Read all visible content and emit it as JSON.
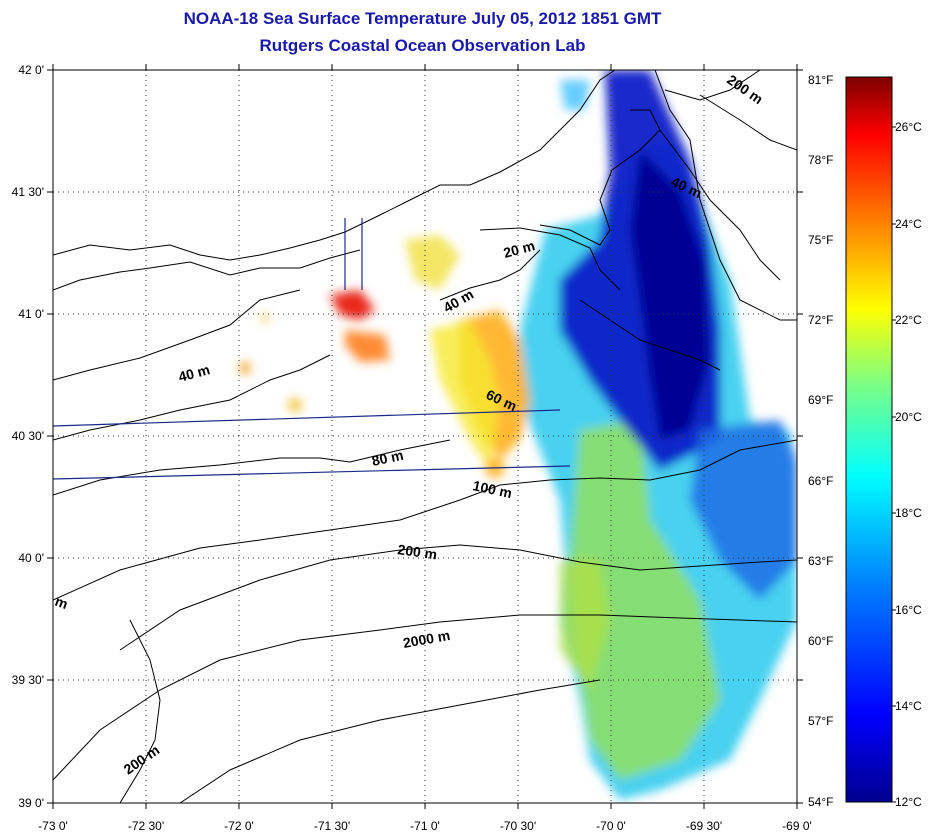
{
  "header": {
    "title": "NOAA-18 Sea Surface Temperature July 05, 2012 1851 GMT",
    "subtitle": "Rutgers Coastal Ocean Observation Lab"
  },
  "map": {
    "lon_range": [
      -73.0,
      -69.0
    ],
    "lat_range": [
      39.0,
      42.0
    ],
    "lon_ticks": [
      "-73 0'",
      "-72 30'",
      "-72 0'",
      "-71 30'",
      "-71 0'",
      "-70 30'",
      "-70 0'",
      "-69 30'",
      "-69 0'"
    ],
    "lat_ticks": [
      "42 0'",
      "41 30'",
      "41 0'",
      "40 30'",
      "40 0'",
      "39 30'",
      "39 0'"
    ],
    "contour_labels": [
      "200 m",
      "40 m",
      "20 m",
      "40 m",
      "40 m",
      "60 m",
      "80 m",
      "100 m",
      "200 m",
      "2000 m",
      "200 m",
      "m"
    ]
  },
  "colorbar": {
    "fahrenheit_labels": [
      "81°F",
      "78°F",
      "75°F",
      "72°F",
      "69°F",
      "66°F",
      "63°F",
      "60°F",
      "57°F",
      "54°F"
    ],
    "celsius_labels": [
      "26°C",
      "24°C",
      "22°C",
      "20°C",
      "18°C",
      "16°C",
      "14°C",
      "12°C"
    ],
    "colors": [
      "#7f0000",
      "#ff0000",
      "#ff8000",
      "#ffff00",
      "#80ff80",
      "#00ffff",
      "#0080ff",
      "#0000ff",
      "#00008f"
    ]
  }
}
